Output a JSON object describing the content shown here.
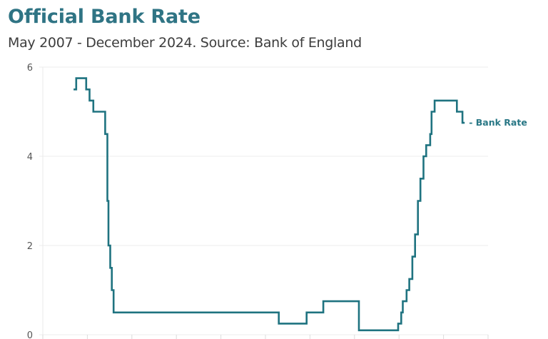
{
  "header": {
    "title": "Official Bank Rate",
    "subtitle": "May 2007 - December 2024. Source: Bank of England"
  },
  "colors": {
    "title": "#2f7484",
    "line": "#1f7380",
    "grid": "#ececec",
    "label": "#2a7886"
  },
  "chart_data": {
    "type": "line",
    "title": "Official Bank Rate",
    "subtitle": "May 2007 - December 2024. Source: Bank of England",
    "xlabel": "",
    "ylabel": "",
    "ylim": [
      0,
      6
    ],
    "yticks": [
      0,
      2,
      4,
      6
    ],
    "xlim": [
      2006,
      2026
    ],
    "xticks": [
      2006,
      2008,
      2010,
      2012,
      2014,
      2016,
      2018,
      2020,
      2022,
      2024,
      2026
    ],
    "grid": true,
    "legend": "inline label at line end",
    "step": true,
    "series": [
      {
        "name": "Bank Rate",
        "label": "- Bank Rate",
        "points": [
          [
            2007.38,
            5.5
          ],
          [
            2007.5,
            5.75
          ],
          [
            2007.95,
            5.5
          ],
          [
            2008.1,
            5.25
          ],
          [
            2008.27,
            5.0
          ],
          [
            2008.8,
            4.5
          ],
          [
            2008.9,
            3.0
          ],
          [
            2008.95,
            2.0
          ],
          [
            2009.03,
            1.5
          ],
          [
            2009.1,
            1.0
          ],
          [
            2009.18,
            0.5
          ],
          [
            2016.6,
            0.25
          ],
          [
            2017.85,
            0.5
          ],
          [
            2018.6,
            0.75
          ],
          [
            2020.2,
            0.1
          ],
          [
            2021.96,
            0.25
          ],
          [
            2022.1,
            0.5
          ],
          [
            2022.17,
            0.75
          ],
          [
            2022.34,
            1.0
          ],
          [
            2022.46,
            1.25
          ],
          [
            2022.6,
            1.75
          ],
          [
            2022.72,
            2.25
          ],
          [
            2022.85,
            3.0
          ],
          [
            2022.96,
            3.5
          ],
          [
            2023.1,
            4.0
          ],
          [
            2023.22,
            4.25
          ],
          [
            2023.4,
            4.5
          ],
          [
            2023.46,
            5.0
          ],
          [
            2023.6,
            5.25
          ],
          [
            2024.6,
            5.0
          ],
          [
            2024.85,
            4.75
          ],
          [
            2024.95,
            4.75
          ]
        ]
      }
    ]
  }
}
